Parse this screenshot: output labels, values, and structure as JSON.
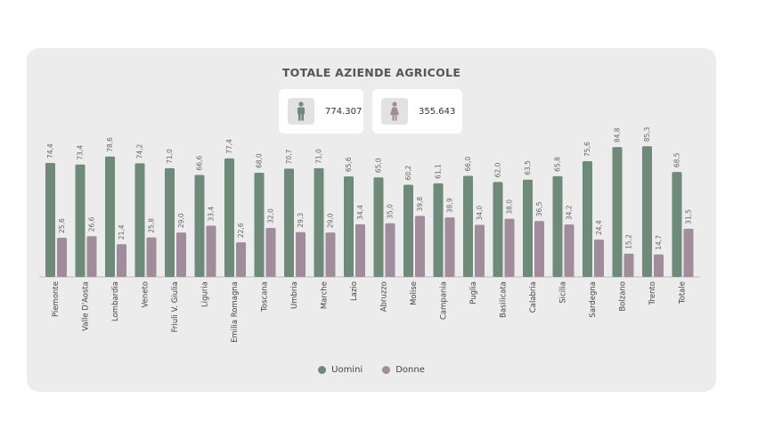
{
  "stats": {
    "men_total": "774.307",
    "women_total": "355.643"
  },
  "colors": {
    "men": "#6e8a78",
    "women": "#a08c9a"
  },
  "chart_data": {
    "type": "bar",
    "title": "TOTALE AZIENDE AGRICOLE",
    "categories": [
      "Piemonte",
      "Valle D'Aosta",
      "Lombardia",
      "Veneto",
      "Friuli V. Giulia",
      "Liguria",
      "Emilia Romagna",
      "Toscana",
      "Umbria",
      "Marche",
      "Lazio",
      "Abruzzo",
      "Molise",
      "Campania",
      "Puglia",
      "Basilicata",
      "Calabria",
      "Sicilia",
      "Sardegna",
      "Bolzano",
      "Trento",
      "Totale"
    ],
    "series": [
      {
        "name": "Uomini",
        "values": [
          74.4,
          73.4,
          78.6,
          74.2,
          71.0,
          66.6,
          77.4,
          68.0,
          70.7,
          71.0,
          65.6,
          65.0,
          60.2,
          61.1,
          66.0,
          62.0,
          63.5,
          65.8,
          75.6,
          84.8,
          85.3,
          68.5
        ],
        "labels": [
          "74,4",
          "73,4",
          "78,6",
          "74,2",
          "71,0",
          "66,6",
          "77,4",
          "68,0",
          "70,7",
          "71,0",
          "65,6",
          "65,0",
          "60,2",
          "61,1",
          "66,0",
          "62,0",
          "63,5",
          "65,8",
          "75,6",
          "84,8",
          "85,3",
          "68,5"
        ]
      },
      {
        "name": "Donne",
        "values": [
          25.6,
          26.6,
          21.4,
          25.8,
          29.0,
          33.4,
          22.6,
          32.0,
          29.3,
          29.0,
          34.4,
          35.0,
          39.8,
          38.9,
          34.0,
          38.0,
          36.5,
          34.2,
          24.4,
          15.2,
          14.7,
          31.5
        ],
        "labels": [
          "25,6",
          "26,6",
          "21,4",
          "25,8",
          "29,0",
          "33,4",
          "22,6",
          "32,0",
          "29,3",
          "29,0",
          "34,4",
          "35,0",
          "39,8",
          "38,9",
          "34,0",
          "38,0",
          "36,5",
          "34,2",
          "24,4",
          "15,2",
          "14,7",
          "31,5"
        ]
      }
    ],
    "ylim": [
      0,
      100
    ],
    "grid": false,
    "legend": "bottom"
  }
}
